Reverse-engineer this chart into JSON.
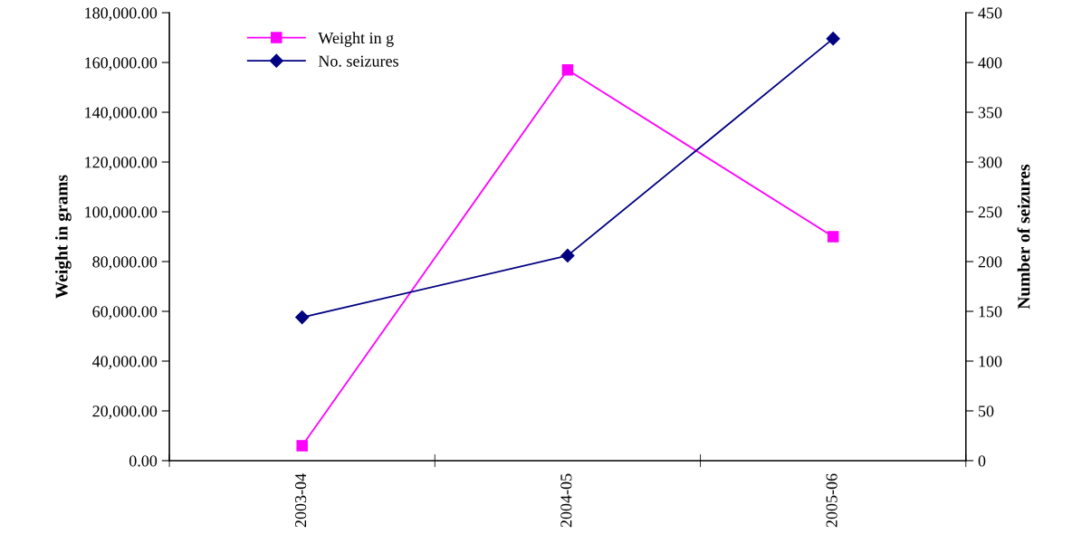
{
  "chart_data": {
    "type": "line",
    "categories": [
      "2003-04",
      "2004-05",
      "2005-06"
    ],
    "series": [
      {
        "name": "Weight in g",
        "color": "#ff00ff",
        "values": [
          6000,
          157000,
          90000
        ],
        "marker": "square"
      },
      {
        "name": "No. seizures",
        "color": "#000080",
        "values": [
          144,
          206,
          424
        ],
        "axis": "y2",
        "marker": "diamond"
      }
    ],
    "ylabel": "Weight in grams",
    "y2label": "Number of seizures",
    "ylim": [
      0,
      180000
    ],
    "yticks": [
      {
        "value": 0,
        "label": "0.00"
      },
      {
        "value": 20000,
        "label": "20,000.00"
      },
      {
        "value": 40000,
        "label": "40,000.00"
      },
      {
        "value": 60000,
        "label": "60,000.00"
      },
      {
        "value": 80000,
        "label": "80,000.00"
      },
      {
        "value": 100000,
        "label": "100,000.00"
      },
      {
        "value": 120000,
        "label": "120,000.00"
      },
      {
        "value": 140000,
        "label": "140,000.00"
      },
      {
        "value": 160000,
        "label": "160,000.00"
      },
      {
        "value": 180000,
        "label": "180,000.00"
      }
    ],
    "y2lim": [
      0,
      450
    ],
    "y2ticks": [
      0,
      50,
      100,
      150,
      200,
      250,
      300,
      350,
      400,
      450
    ],
    "legend": "top left",
    "grid": false,
    "line_style": "solid"
  }
}
